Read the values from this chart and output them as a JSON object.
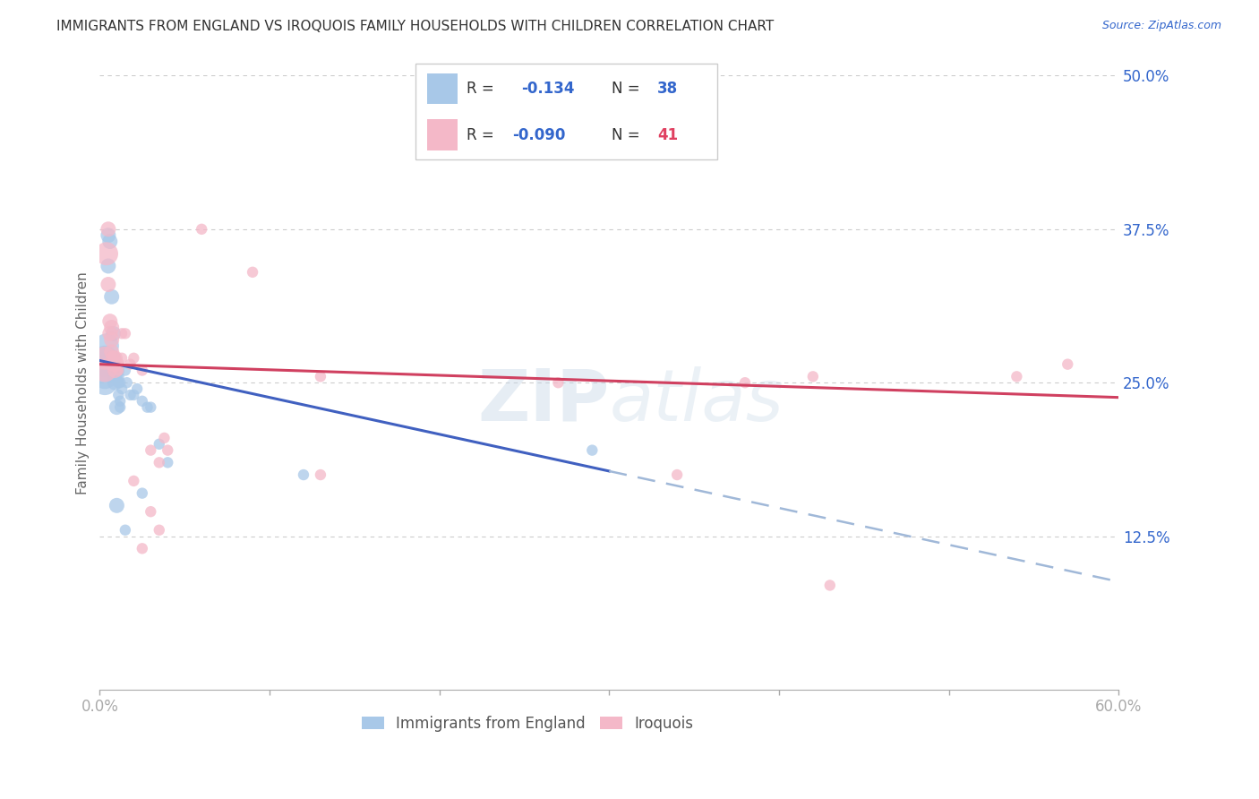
{
  "title": "IMMIGRANTS FROM ENGLAND VS IROQUOIS FAMILY HOUSEHOLDS WITH CHILDREN CORRELATION CHART",
  "source": "Source: ZipAtlas.com",
  "ylabel": "Family Households with Children",
  "xlim": [
    0,
    0.6
  ],
  "ylim": [
    0,
    0.5
  ],
  "yticks_right": [
    0.125,
    0.25,
    0.375,
    0.5
  ],
  "ytick_labels_right": [
    "12.5%",
    "25.0%",
    "37.5%",
    "50.0%"
  ],
  "xtick_labels": [
    "0.0%",
    "",
    "",
    "",
    "",
    "",
    "60.0%"
  ],
  "legend_label_blue": "Immigrants from England",
  "legend_label_pink": "Iroquois",
  "blue_color": "#a8c8e8",
  "pink_color": "#f4b8c8",
  "trendline_blue_color": "#4060c0",
  "trendline_pink_color": "#d04060",
  "trendline_blue_dashed_color": "#a0b8d8",
  "watermark": "ZIPatlas",
  "blue_scatter": [
    [
      0.003,
      0.27
    ],
    [
      0.003,
      0.255
    ],
    [
      0.003,
      0.25
    ],
    [
      0.003,
      0.265
    ],
    [
      0.004,
      0.28
    ],
    [
      0.005,
      0.37
    ],
    [
      0.005,
      0.345
    ],
    [
      0.006,
      0.365
    ],
    [
      0.007,
      0.32
    ],
    [
      0.008,
      0.29
    ],
    [
      0.008,
      0.27
    ],
    [
      0.009,
      0.26
    ],
    [
      0.009,
      0.255
    ],
    [
      0.009,
      0.25
    ],
    [
      0.01,
      0.26
    ],
    [
      0.01,
      0.255
    ],
    [
      0.01,
      0.23
    ],
    [
      0.011,
      0.25
    ],
    [
      0.011,
      0.24
    ],
    [
      0.012,
      0.25
    ],
    [
      0.012,
      0.235
    ],
    [
      0.012,
      0.23
    ],
    [
      0.013,
      0.245
    ],
    [
      0.015,
      0.26
    ],
    [
      0.016,
      0.25
    ],
    [
      0.018,
      0.24
    ],
    [
      0.02,
      0.24
    ],
    [
      0.022,
      0.245
    ],
    [
      0.025,
      0.235
    ],
    [
      0.028,
      0.23
    ],
    [
      0.03,
      0.23
    ],
    [
      0.035,
      0.2
    ],
    [
      0.04,
      0.185
    ],
    [
      0.01,
      0.15
    ],
    [
      0.015,
      0.13
    ],
    [
      0.025,
      0.16
    ],
    [
      0.12,
      0.175
    ],
    [
      0.29,
      0.195
    ]
  ],
  "pink_scatter": [
    [
      0.003,
      0.27
    ],
    [
      0.003,
      0.26
    ],
    [
      0.004,
      0.355
    ],
    [
      0.005,
      0.375
    ],
    [
      0.005,
      0.33
    ],
    [
      0.006,
      0.3
    ],
    [
      0.006,
      0.29
    ],
    [
      0.007,
      0.295
    ],
    [
      0.007,
      0.285
    ],
    [
      0.007,
      0.275
    ],
    [
      0.008,
      0.27
    ],
    [
      0.008,
      0.265
    ],
    [
      0.009,
      0.27
    ],
    [
      0.009,
      0.26
    ],
    [
      0.01,
      0.265
    ],
    [
      0.011,
      0.26
    ],
    [
      0.013,
      0.29
    ],
    [
      0.013,
      0.27
    ],
    [
      0.015,
      0.29
    ],
    [
      0.018,
      0.265
    ],
    [
      0.02,
      0.27
    ],
    [
      0.025,
      0.26
    ],
    [
      0.03,
      0.195
    ],
    [
      0.035,
      0.185
    ],
    [
      0.038,
      0.205
    ],
    [
      0.04,
      0.195
    ],
    [
      0.06,
      0.375
    ],
    [
      0.09,
      0.34
    ],
    [
      0.13,
      0.175
    ],
    [
      0.13,
      0.255
    ],
    [
      0.27,
      0.25
    ],
    [
      0.34,
      0.175
    ],
    [
      0.38,
      0.25
    ],
    [
      0.42,
      0.255
    ],
    [
      0.43,
      0.085
    ],
    [
      0.54,
      0.255
    ],
    [
      0.57,
      0.265
    ],
    [
      0.02,
      0.17
    ],
    [
      0.03,
      0.145
    ],
    [
      0.035,
      0.13
    ],
    [
      0.025,
      0.115
    ]
  ]
}
